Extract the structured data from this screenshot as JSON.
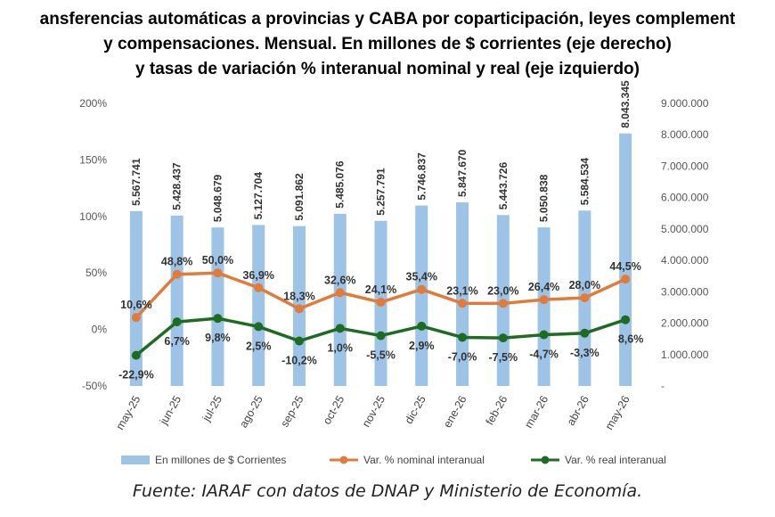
{
  "title_lines": [
    "ansferencias automáticas a provincias y CABA por coparticipación, leyes complement",
    "y compensaciones. Mensual. En millones de $ corrientes (eje derecho)",
    "y tasas de variación % interanual nominal y real (eje izquierdo)"
  ],
  "source": "Fuente: IARAF con datos de DNAP y Ministerio de Economía.",
  "chart_data": {
    "type": "bar",
    "categories": [
      "may-25",
      "jun-25",
      "jul-25",
      "ago-25",
      "sep-25",
      "oct-25",
      "nov-25",
      "dic-25",
      "ene-26",
      "feb-26",
      "mar-26",
      "abr-26",
      "may-26"
    ],
    "left_axis": {
      "ylim": [
        -50,
        200
      ],
      "ticks": [
        "-50%",
        "0%",
        "50%",
        "100%",
        "150%",
        "200%"
      ],
      "tick_values": [
        -50,
        0,
        50,
        100,
        150,
        200
      ]
    },
    "right_axis": {
      "ylim": [
        0,
        9000000
      ],
      "ticks": [
        "-",
        "1.000.000",
        "2.000.000",
        "3.000.000",
        "4.000.000",
        "5.000.000",
        "6.000.000",
        "7.000.000",
        "8.000.000",
        "9.000.000"
      ],
      "tick_values": [
        0,
        1000000,
        2000000,
        3000000,
        4000000,
        5000000,
        6000000,
        7000000,
        8000000,
        9000000
      ]
    },
    "series": [
      {
        "name": "En millones de $ Corrientes",
        "type": "bar",
        "axis": "right",
        "color": "#9dc3e6",
        "values": [
          5567741,
          5428437,
          5048679,
          5127704,
          5091862,
          5485076,
          5257791,
          5746837,
          5847670,
          5443726,
          5050838,
          5584534,
          8043345
        ],
        "labels": [
          "5.567.741",
          "5.428.437",
          "5.048.679",
          "5.127.704",
          "5.091.862",
          "5.485.076",
          "5.257.791",
          "5.746.837",
          "5.847.670",
          "5.443.726",
          "5.050.838",
          "5.584.534",
          "8.043.345"
        ]
      },
      {
        "name": "Var. % nominal interanual",
        "type": "line",
        "axis": "left",
        "color": "#e07b39",
        "values": [
          10.6,
          48.8,
          50.0,
          36.9,
          18.3,
          32.6,
          24.1,
          35.4,
          23.1,
          23.0,
          26.4,
          28.0,
          44.5
        ],
        "labels": [
          "10,6%",
          "48,8%",
          "50,0%",
          "36,9%",
          "18,3%",
          "32,6%",
          "24,1%",
          "35,4%",
          "23,1%",
          "23,0%",
          "26,4%",
          "28,0%",
          "44,5%"
        ]
      },
      {
        "name": "Var. % real interanual",
        "type": "line",
        "axis": "left",
        "color": "#1e6b22",
        "values": [
          -22.9,
          6.7,
          9.8,
          2.5,
          -10.2,
          1.0,
          -5.5,
          2.9,
          -7.0,
          -7.5,
          -4.7,
          -3.3,
          8.6
        ],
        "labels": [
          "-22,9%",
          "6,7%",
          "9,8%",
          "2,5%",
          "-10,2%",
          "1,0%",
          "-5,5%",
          "2,9%",
          "-7,0%",
          "-7,5%",
          "-4,7%",
          "-3,3%",
          "8,6%"
        ]
      }
    ],
    "legend_position": "bottom",
    "grid": false
  }
}
